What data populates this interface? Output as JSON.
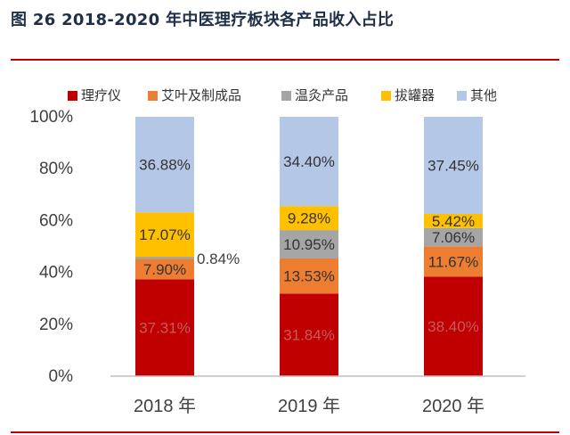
{
  "figure": {
    "title": "图 26 2018-2020 年中医理疗板块各产品收入占比"
  },
  "colors": {
    "rule": "#c00000",
    "axis_text": "#404040"
  },
  "chart_data": {
    "type": "bar",
    "stacked": true,
    "title": "",
    "xlabel": "",
    "ylabel": "",
    "ylim": [
      0,
      100
    ],
    "y_ticks": [
      "0%",
      "20%",
      "40%",
      "60%",
      "80%",
      "100%"
    ],
    "categories": [
      "2018 年",
      "2019 年",
      "2020 年"
    ],
    "legend_position": "top",
    "grid": false,
    "series": [
      {
        "name": "理疗仪",
        "color": "#c00000",
        "values": [
          37.31,
          31.84,
          38.4
        ],
        "labels": [
          "37.31%",
          "31.84%",
          "38.40%"
        ]
      },
      {
        "name": "艾叶及制成品",
        "color": "#ed7d31",
        "values": [
          7.9,
          13.53,
          11.67
        ],
        "labels": [
          "7.90%",
          "13.53%",
          "11.67%"
        ]
      },
      {
        "name": "温灸产品",
        "color": "#a5a5a5",
        "values": [
          0.84,
          10.95,
          7.06
        ],
        "labels": [
          "0.84%",
          "10.95%",
          "7.06%"
        ]
      },
      {
        "name": "拔罐器",
        "color": "#ffc000",
        "values": [
          17.07,
          9.28,
          5.42
        ],
        "labels": [
          "17.07%",
          "9.28%",
          "5.42%"
        ]
      },
      {
        "name": "其他",
        "color": "#b4c7e7",
        "values": [
          36.88,
          34.4,
          37.45
        ],
        "labels": [
          "36.88%",
          "34.40%",
          "37.45%"
        ]
      }
    ]
  }
}
